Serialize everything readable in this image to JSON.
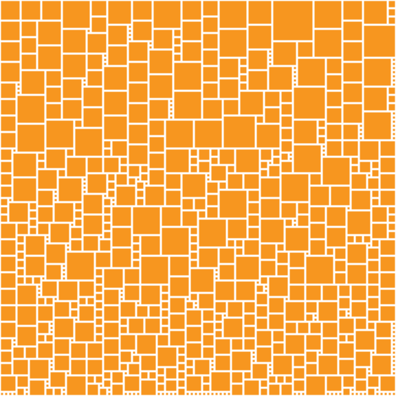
{
  "canvas": {
    "background_color": "#ffffff",
    "tile_color": "#f7961f"
  },
  "pattern": {
    "description_visible": "",
    "kind": "square-tile-mosaic"
  }
}
